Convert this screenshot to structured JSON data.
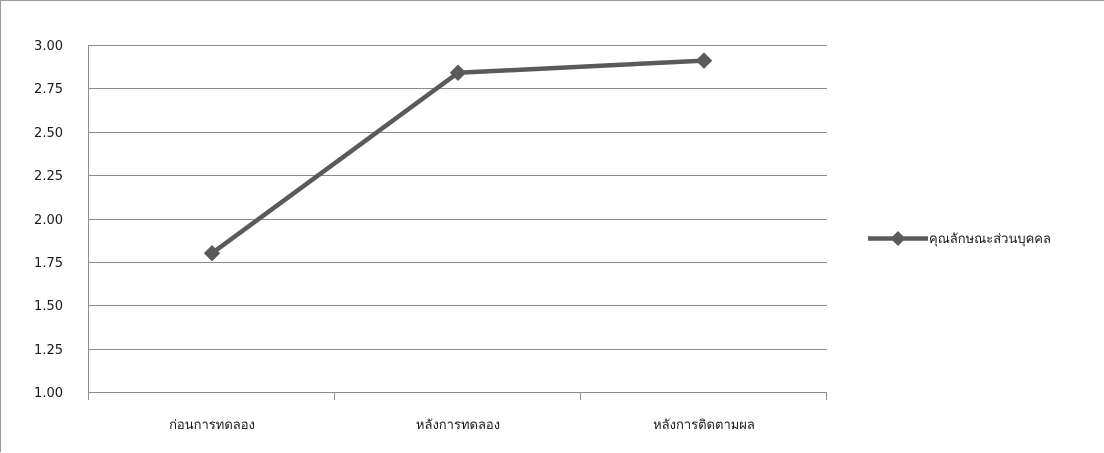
{
  "chart_data": {
    "type": "line",
    "categories": [
      "ก่อนการทดลอง",
      "หลังการทดลอง",
      "หลังการติดตามผล"
    ],
    "series": [
      {
        "name": "คุณลักษณะส่วนบุคคล",
        "values": [
          1.8,
          2.84,
          2.91
        ],
        "color": "#5a5a5a"
      }
    ],
    "ylim": [
      1.0,
      3.0
    ],
    "yticks": [
      "1.00",
      "1.25",
      "1.50",
      "1.75",
      "2.00",
      "2.25",
      "2.50",
      "2.75",
      "3.00"
    ],
    "grid": true,
    "legend": "right",
    "title": "",
    "xlabel": "",
    "ylabel": "",
    "gridline_color": "#8c8c8c",
    "axis_color": "#8c8c8c"
  }
}
